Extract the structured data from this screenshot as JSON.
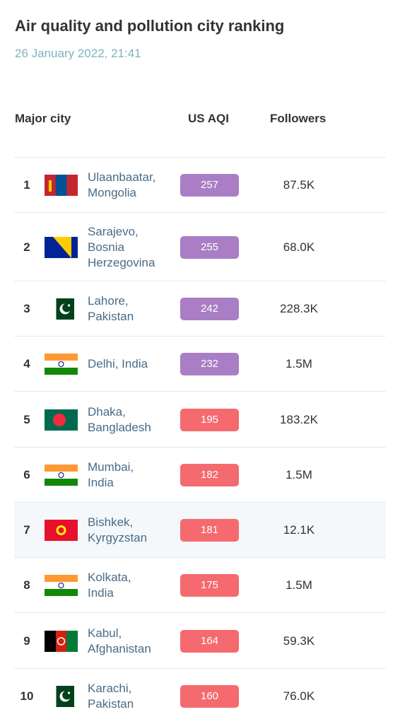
{
  "header": {
    "title": "Air quality and pollution city ranking",
    "date": "26 January 2022, 21:41"
  },
  "table": {
    "columns": [
      "Major city",
      "US AQI",
      "Followers"
    ],
    "rows": [
      {
        "rank": 1,
        "city": [
          "Ulaanbaatar,",
          "Mongolia"
        ],
        "aqi": 257,
        "followers": "87.5K",
        "color": "#a97ec4"
      },
      {
        "rank": 2,
        "city": [
          "Sarajevo,",
          "Bosnia",
          "Herzegovina"
        ],
        "aqi": 255,
        "followers": "68.0K",
        "color": "#a97ec4"
      },
      {
        "rank": 3,
        "city": [
          "Lahore,",
          "Pakistan"
        ],
        "aqi": 242,
        "followers": "228.3K",
        "color": "#a97ec4"
      },
      {
        "rank": 4,
        "city": [
          "Delhi, India"
        ],
        "aqi": 232,
        "followers": "1.5M",
        "color": "#a97ec4"
      },
      {
        "rank": 5,
        "city": [
          "Dhaka,",
          "Bangladesh"
        ],
        "aqi": 195,
        "followers": "183.2K",
        "color": "#f56a6f"
      },
      {
        "rank": 6,
        "city": [
          "Mumbai,",
          "India"
        ],
        "aqi": 182,
        "followers": "1.5M",
        "color": "#f56a6f"
      },
      {
        "rank": 7,
        "city": [
          "Bishkek,",
          "Kyrgyzstan"
        ],
        "aqi": 181,
        "followers": "12.1K",
        "color": "#f56a6f"
      },
      {
        "rank": 8,
        "city": [
          "Kolkata,",
          "India"
        ],
        "aqi": 175,
        "followers": "1.5M",
        "color": "#f56a6f"
      },
      {
        "rank": 9,
        "city": [
          "Kabul,",
          "Afghanistan"
        ],
        "aqi": 164,
        "followers": "59.3K",
        "color": "#f56a6f"
      },
      {
        "rank": 10,
        "city": [
          "Karachi,",
          "Pakistan"
        ],
        "aqi": 160,
        "followers": "76.0K",
        "color": "#f56a6f"
      }
    ]
  }
}
